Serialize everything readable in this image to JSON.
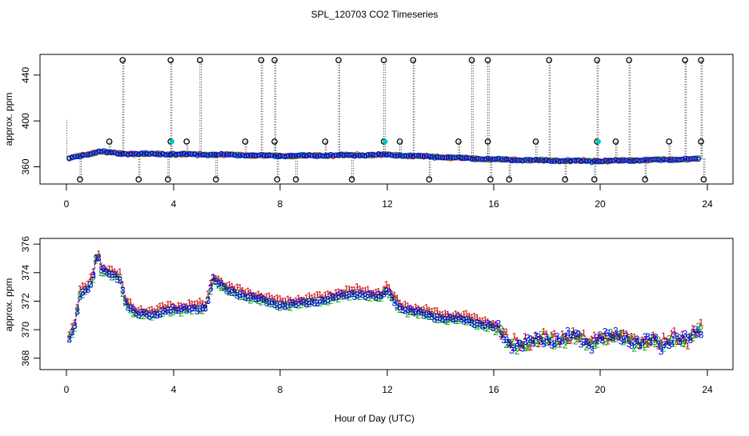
{
  "chart_data": [
    {
      "type": "scatter",
      "title": "SPL_120703  CO2 Timeseries",
      "xlabel": "Hour of Day (UTC)",
      "ylabel": "approx. ppm",
      "xlim": [
        -1,
        25
      ],
      "ylim": [
        345,
        458
      ],
      "x_ticks": [
        "0",
        "4",
        "8",
        "12",
        "16",
        "20",
        "24"
      ],
      "y_ticks": [
        "360",
        "400",
        "440"
      ],
      "y_tick_values": [
        360,
        400,
        440
      ],
      "outlier_markers": "o",
      "baseline": [
        [
          0.0,
          366.6
        ],
        [
          0.4,
          369.0
        ],
        [
          1.0,
          372.0
        ],
        [
          1.2,
          373.5
        ],
        [
          2.0,
          371.5
        ],
        [
          4.0,
          371.0
        ],
        [
          6.0,
          370.5
        ],
        [
          8.0,
          369.5
        ],
        [
          10.0,
          370.0
        ],
        [
          12.0,
          370.5
        ],
        [
          14.0,
          368.5
        ],
        [
          16.0,
          366.5
        ],
        [
          18.0,
          365.5
        ],
        [
          20.0,
          365.0
        ],
        [
          22.0,
          366.0
        ],
        [
          24.0,
          367.0
        ]
      ],
      "outliers_high": [
        [
          2.1,
          453
        ],
        [
          3.9,
          453
        ],
        [
          5.0,
          453
        ],
        [
          7.3,
          453
        ],
        [
          7.8,
          453
        ],
        [
          10.2,
          453
        ],
        [
          11.9,
          453
        ],
        [
          13.0,
          453
        ],
        [
          15.2,
          453
        ],
        [
          15.8,
          453
        ],
        [
          18.1,
          453
        ],
        [
          19.9,
          453
        ],
        [
          21.1,
          453
        ],
        [
          23.2,
          453
        ],
        [
          23.8,
          453
        ]
      ],
      "outliers_mid": [
        [
          1.6,
          382
        ],
        [
          3.9,
          382
        ],
        [
          4.5,
          382
        ],
        [
          6.7,
          382
        ],
        [
          7.8,
          382
        ],
        [
          9.7,
          382
        ],
        [
          11.9,
          382
        ],
        [
          12.5,
          382
        ],
        [
          14.7,
          382
        ],
        [
          15.8,
          382
        ],
        [
          17.6,
          382
        ],
        [
          19.9,
          382
        ],
        [
          20.6,
          382
        ],
        [
          22.6,
          382
        ],
        [
          23.8,
          382
        ]
      ],
      "outliers_low": [
        [
          0.5,
          349
        ],
        [
          2.7,
          349
        ],
        [
          3.8,
          349
        ],
        [
          5.6,
          349
        ],
        [
          7.9,
          349
        ],
        [
          8.6,
          349
        ],
        [
          10.7,
          349
        ],
        [
          13.6,
          349
        ],
        [
          15.9,
          349
        ],
        [
          16.6,
          349
        ],
        [
          18.7,
          349
        ],
        [
          19.8,
          349
        ],
        [
          21.7,
          349
        ],
        [
          23.9,
          349
        ]
      ]
    },
    {
      "type": "scatter",
      "xlabel": "Hour of Day (UTC)",
      "ylabel": "approx. ppm",
      "xlim": [
        -1,
        25
      ],
      "ylim": [
        367.2,
        376.4
      ],
      "x_ticks": [
        "0",
        "4",
        "8",
        "12",
        "16",
        "20",
        "24"
      ],
      "y_ticks": [
        "368",
        "370",
        "372",
        "374",
        "376"
      ],
      "y_tick_values": [
        368,
        370,
        372,
        374,
        376
      ],
      "series": [
        {
          "name": "1",
          "color": "#d00000",
          "offset": 0.25
        },
        {
          "name": "2",
          "color": "#00a000",
          "offset": -0.12
        },
        {
          "name": "3",
          "color": "#0000ee",
          "offset": -0.05
        }
      ],
      "trend": [
        [
          0.0,
          369.0
        ],
        [
          0.3,
          370.2
        ],
        [
          0.5,
          372.5
        ],
        [
          0.8,
          373.0
        ],
        [
          1.0,
          373.8
        ],
        [
          1.15,
          375.6
        ],
        [
          1.3,
          374.2
        ],
        [
          2.0,
          373.6
        ],
        [
          2.2,
          372.0
        ],
        [
          2.6,
          371.2
        ],
        [
          3.2,
          371.0
        ],
        [
          3.8,
          371.5
        ],
        [
          4.3,
          371.4
        ],
        [
          5.2,
          371.6
        ],
        [
          5.5,
          373.6
        ],
        [
          6.0,
          372.8
        ],
        [
          7.0,
          372.3
        ],
        [
          7.5,
          372.0
        ],
        [
          8.0,
          371.8
        ],
        [
          9.0,
          371.9
        ],
        [
          10.0,
          372.3
        ],
        [
          11.0,
          372.6
        ],
        [
          11.8,
          372.3
        ],
        [
          12.0,
          372.8
        ],
        [
          12.5,
          371.6
        ],
        [
          13.0,
          371.3
        ],
        [
          14.0,
          370.9
        ],
        [
          15.0,
          370.7
        ],
        [
          15.9,
          370.3
        ],
        [
          16.2,
          370.0
        ],
        [
          16.6,
          369.0
        ],
        [
          17.5,
          369.2
        ],
        [
          18.5,
          369.4
        ],
        [
          19.0,
          369.6
        ],
        [
          19.6,
          369.0
        ],
        [
          20.0,
          369.6
        ],
        [
          21.0,
          369.4
        ],
        [
          21.5,
          369.2
        ],
        [
          22.0,
          369.3
        ],
        [
          22.3,
          368.8
        ],
        [
          22.8,
          369.6
        ],
        [
          23.3,
          369.3
        ],
        [
          23.8,
          370.0
        ]
      ],
      "x_start": 0.1,
      "x_end": 23.8,
      "x_step": 0.1
    }
  ]
}
